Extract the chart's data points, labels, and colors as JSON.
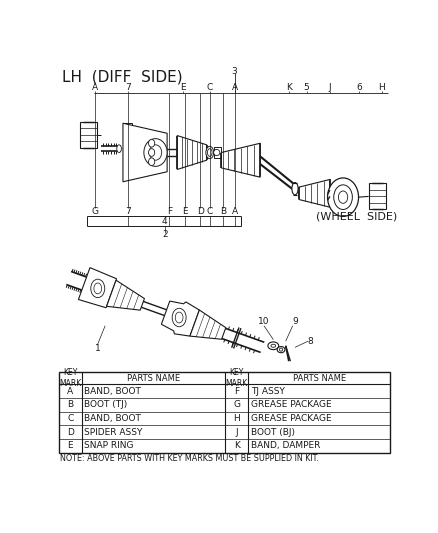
{
  "title": "LH (DIFF SIDE)",
  "wheel_side_label": "(WHEEL  SIDE)",
  "bg_color": "#ffffff",
  "lc": "#1a1a1a",
  "table_left": [
    [
      "A",
      "BAND, BOOT"
    ],
    [
      "B",
      "BOOT (TJ)"
    ],
    [
      "C",
      "BAND, BOOT"
    ],
    [
      "D",
      "SPIDER ASSY"
    ],
    [
      "E",
      "SNAP RING"
    ]
  ],
  "table_right": [
    [
      "F",
      "TJ ASSY"
    ],
    [
      "G",
      "GREASE PACKAGE"
    ],
    [
      "H",
      "GREASE PACKAGE"
    ],
    [
      "J",
      "BOOT (BJ)"
    ],
    [
      "K",
      "BAND, DAMPER"
    ]
  ],
  "note": "NOTE: ABOVE PARTS WITH KEY MARKS MUST BE SUPPLIED IN KIT."
}
